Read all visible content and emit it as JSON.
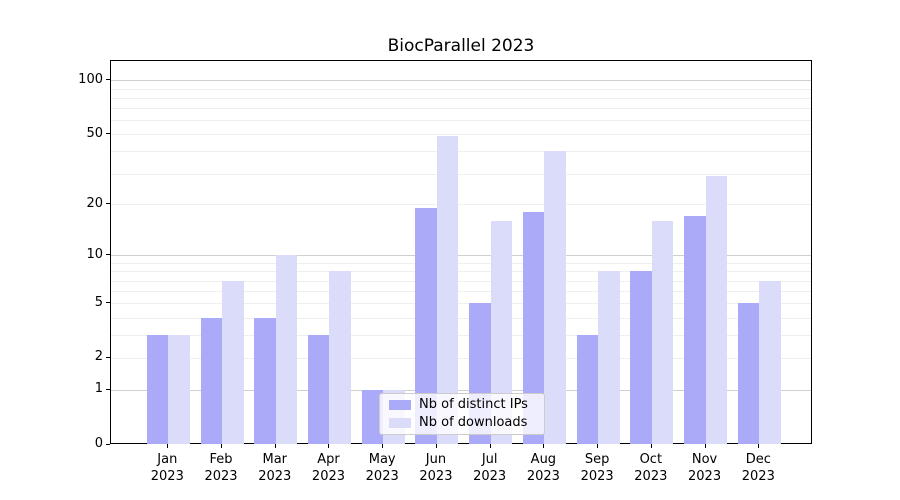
{
  "chart_data": {
    "type": "bar",
    "title": "BiocParallel 2023",
    "categories": [
      "Jan",
      "Feb",
      "Mar",
      "Apr",
      "May",
      "Jun",
      "Jul",
      "Aug",
      "Sep",
      "Oct",
      "Nov",
      "Dec"
    ],
    "year": "2023",
    "series": [
      {
        "name": "Nb of distinct IPs",
        "color": "#aaaaf8",
        "values": [
          3,
          4,
          4,
          3,
          1,
          19,
          5,
          18,
          3,
          8,
          17,
          5
        ]
      },
      {
        "name": "Nb of downloads",
        "color": "#dbdbfa",
        "values": [
          3,
          7,
          10,
          8,
          1,
          49,
          16,
          40,
          8,
          16,
          29,
          7
        ]
      }
    ],
    "yscale": "log1p",
    "y_tick_labels": [
      100,
      50,
      20,
      10,
      5,
      2,
      1,
      0
    ],
    "y_major_gridlines": [
      1,
      10,
      100
    ],
    "y_minor_gridlines": [
      2,
      3,
      4,
      5,
      6,
      7,
      8,
      9,
      20,
      30,
      40,
      50,
      60,
      70,
      80,
      90
    ],
    "ylim": [
      0,
      127
    ],
    "xlabel": "",
    "ylabel": "",
    "grid": "horizontal",
    "legend_position": "lower center",
    "colors": {
      "major_grid": "#d0d0d0",
      "minor_grid": "#efefef",
      "axis": "#000000"
    }
  }
}
